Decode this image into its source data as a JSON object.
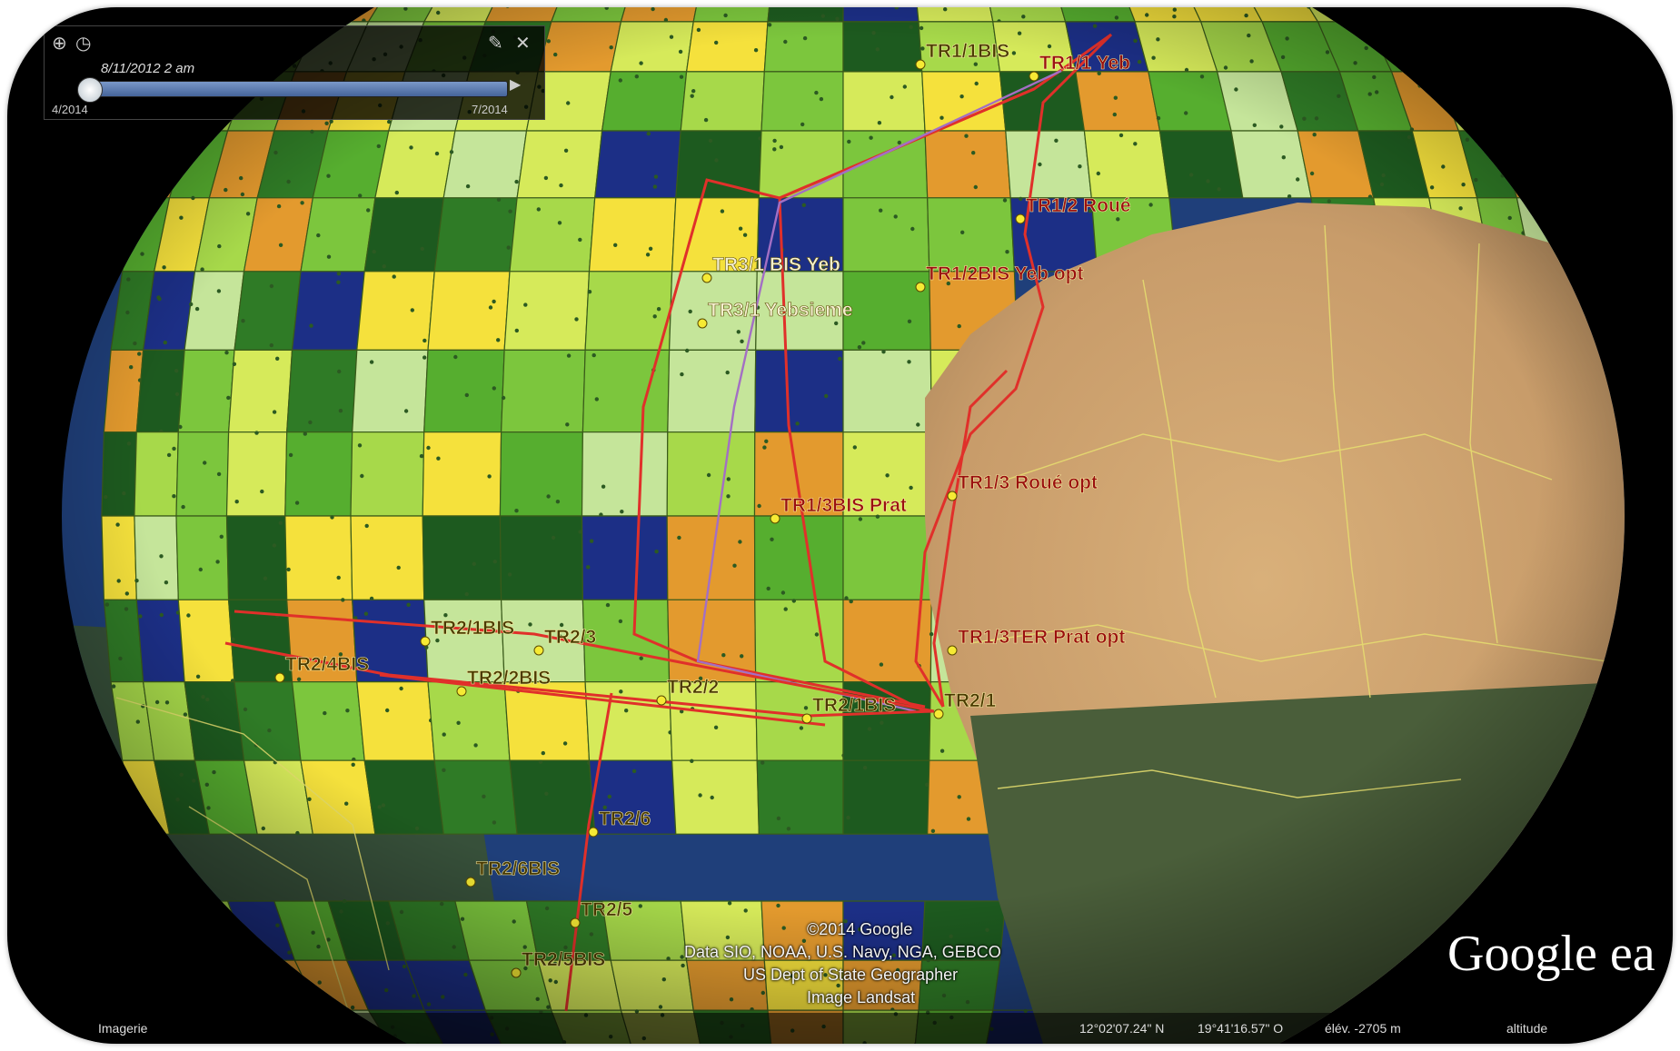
{
  "app": {
    "name": "Google Earth"
  },
  "time_slider": {
    "current_date": "8/11/2012  2 am",
    "range_start": "4/2014",
    "range_end": "7/2014",
    "icons": [
      "zoom-icon",
      "clock-icon",
      "wrench-icon",
      "close-icon",
      "play-icon"
    ]
  },
  "colors": {
    "ocean": "#1f3f7a",
    "desert": "#c9a070",
    "land_dark": "#37503a",
    "track": "#e0302a",
    "label_text": "#9a0f0f",
    "label_text_alt": "#4a3a00",
    "grid_line": "#3a5a1a",
    "waypoint": "#f6ea34",
    "cell_palette": [
      "#e39a2e",
      "#f5e13c",
      "#d6ea5a",
      "#a7d94a",
      "#7cc63d",
      "#56ae2f",
      "#2f7b26",
      "#1d5a1f",
      "#1c2f86",
      "#c5e59a"
    ]
  },
  "waypoints": [
    {
      "label": "TR1/1BIS",
      "text_color": "dark"
    },
    {
      "label": "TR1/1 Yeb",
      "text_color": "red"
    },
    {
      "label": "TR1/2 Roué",
      "text_color": "red"
    },
    {
      "label": "TR3/1 BIS Yeb",
      "text_color": "light"
    },
    {
      "label": "TR1/2BIS Yeb opt",
      "text_color": "red"
    },
    {
      "label": "TR3/1 Yebsieme",
      "text_color": "light"
    },
    {
      "label": "TR1/3 Roué opt",
      "text_color": "red"
    },
    {
      "label": "TR1/3BIS Prat",
      "text_color": "red"
    },
    {
      "label": "TR1/3TER Prat opt",
      "text_color": "red"
    },
    {
      "label": "TR2/1BIS",
      "text_color": "dark"
    },
    {
      "label": "TR2/3",
      "text_color": "dark"
    },
    {
      "label": "TR2/4BIS",
      "text_color": "dark"
    },
    {
      "label": "TR2/2BIS",
      "text_color": "dark"
    },
    {
      "label": "TR2/2",
      "text_color": "dark"
    },
    {
      "label": "TR2/1BIS",
      "text_color": "dark"
    },
    {
      "label": "TR2/1",
      "text_color": "dark"
    },
    {
      "label": "TR2/6",
      "text_color": "dark"
    },
    {
      "label": "TR2/6BIS",
      "text_color": "dark"
    },
    {
      "label": "TR2/5",
      "text_color": "dark"
    },
    {
      "label": "TR2/5BIS",
      "text_color": "dark"
    }
  ],
  "attribution": {
    "line1": "©2014 Google",
    "line2": "Data SIO, NOAA, U.S. Navy, NGA, GEBCO",
    "line3": "US Dept of State Geographer",
    "line4": "Image Landsat"
  },
  "logo": {
    "text": "Google ea"
  },
  "status_bar": {
    "left": "Imagerie",
    "coords_lat": "12°02'07.24\" N",
    "coords_lon": "19°41'16.57\" O",
    "elevation": "élév. -2705 m",
    "altitude": "altitude"
  }
}
